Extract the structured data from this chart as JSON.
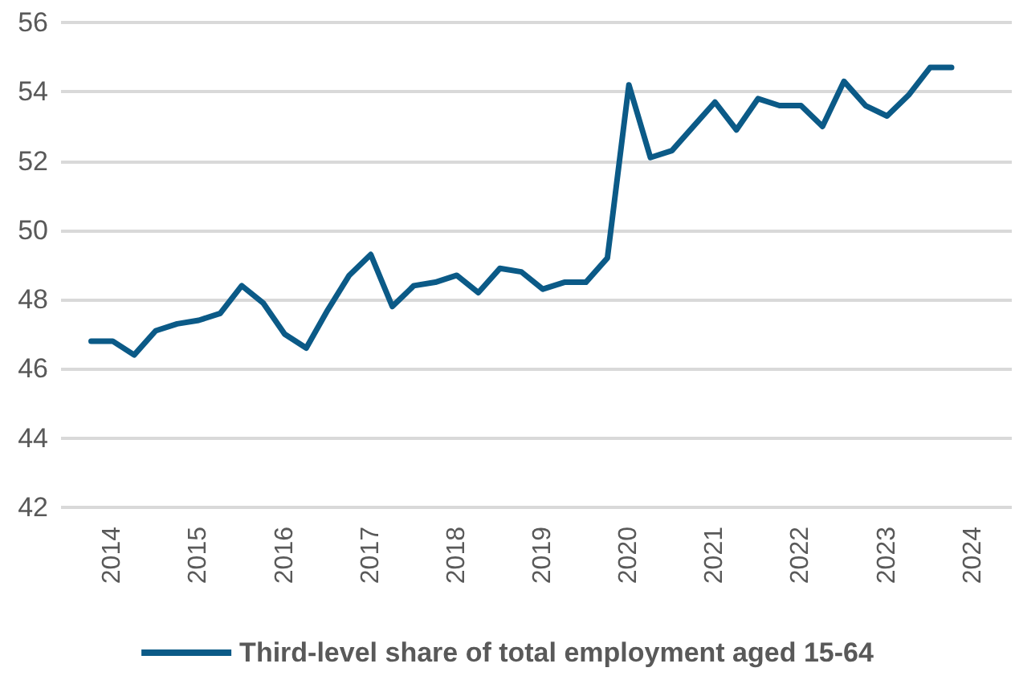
{
  "chart_data": {
    "type": "line",
    "x": [
      2013.75,
      2014,
      2014.25,
      2014.5,
      2014.75,
      2015,
      2015.25,
      2015.5,
      2015.75,
      2016,
      2016.25,
      2016.5,
      2016.75,
      2017,
      2017.25,
      2017.5,
      2017.75,
      2018,
      2018.25,
      2018.5,
      2018.75,
      2019,
      2019.25,
      2019.5,
      2019.75,
      2020,
      2020.25,
      2020.5,
      2020.75,
      2021,
      2021.25,
      2021.5,
      2021.75,
      2022,
      2022.25,
      2022.5,
      2022.75,
      2023,
      2023.25,
      2023.5,
      2023.75
    ],
    "series": [
      {
        "name": "Third-level share of total employment aged 15-64",
        "color": "#0b5a87",
        "values": [
          46.8,
          46.8,
          46.4,
          47.1,
          47.3,
          47.4,
          47.6,
          48.4,
          47.9,
          47.0,
          46.6,
          47.7,
          48.7,
          49.3,
          47.8,
          48.4,
          48.5,
          48.7,
          48.2,
          48.9,
          48.8,
          48.3,
          48.5,
          48.5,
          49.2,
          54.2,
          52.1,
          52.3,
          53.0,
          53.7,
          52.9,
          53.8,
          53.6,
          53.6,
          53.0,
          54.3,
          53.6,
          53.3,
          53.9,
          54.7,
          54.7
        ]
      }
    ],
    "xlim": [
      2013.4,
      2024.45
    ],
    "xticks": [
      2014,
      2015,
      2016,
      2017,
      2018,
      2019,
      2020,
      2021,
      2022,
      2023,
      2024
    ],
    "ylim": [
      42,
      56
    ],
    "yticks": [
      42,
      44,
      46,
      48,
      50,
      52,
      54,
      56
    ],
    "grid": "y",
    "legend": "bottom",
    "marker": "none",
    "line_style": "solid"
  }
}
